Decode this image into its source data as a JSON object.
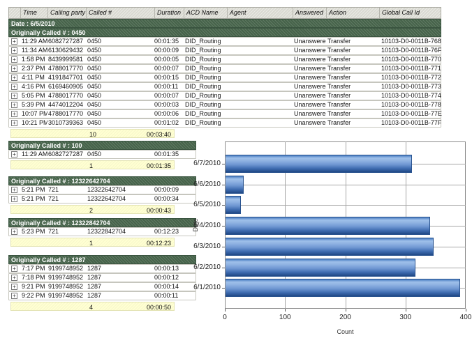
{
  "report": {
    "columns": [
      "Time",
      "Calling party #",
      "Called #",
      "Duration",
      "ACD Name",
      "Agent",
      "Answered",
      "Action",
      "Global Call Id"
    ],
    "date_header": "Date : 6/5/2010",
    "icons": {
      "expand": "+"
    },
    "colors": {
      "group_bar": "#46634a",
      "summary_band": "#ffffd2",
      "bar_blue": "#4a7ec2"
    },
    "top_section": {
      "label": "Originally Called # : 0450",
      "rows": [
        {
          "time": "11:29 AM",
          "calling": "6082727287",
          "called": "0450",
          "duration": "00:01:35",
          "acd": "DID_Routing",
          "agent": "",
          "answered": "Unanswered",
          "action": "Transfer",
          "global_id": "10103-D0-0011B-768"
        },
        {
          "time": "11:34 AM",
          "calling": "6130629432",
          "called": "0450",
          "duration": "00:00:09",
          "acd": "DID_Routing",
          "agent": "",
          "answered": "Unanswered",
          "action": "Transfer",
          "global_id": "10103-D0-0011B-76F"
        },
        {
          "time": "1:58 PM",
          "calling": "8439999581",
          "called": "0450",
          "duration": "00:00:05",
          "acd": "DID_Routing",
          "agent": "",
          "answered": "Unanswered",
          "action": "Transfer",
          "global_id": "10103-D0-0011B-770"
        },
        {
          "time": "2:37 PM",
          "calling": "4788017770",
          "called": "0450",
          "duration": "00:00:07",
          "acd": "DID_Routing",
          "agent": "",
          "answered": "Unanswered",
          "action": "Transfer",
          "global_id": "10103-D0-0011B-771"
        },
        {
          "time": "4:11 PM",
          "calling": "4191847701",
          "called": "0450",
          "duration": "00:00:15",
          "acd": "DID_Routing",
          "agent": "",
          "answered": "Unanswered",
          "action": "Transfer",
          "global_id": "10103-D0-0011B-772"
        },
        {
          "time": "4:16 PM",
          "calling": "6169460905",
          "called": "0450",
          "duration": "00:00:11",
          "acd": "DID_Routing",
          "agent": "",
          "answered": "Unanswered",
          "action": "Transfer",
          "global_id": "10103-D0-0011B-773"
        },
        {
          "time": "5:05 PM",
          "calling": "4788017770",
          "called": "0450",
          "duration": "00:00:07",
          "acd": "DID_Routing",
          "agent": "",
          "answered": "Unanswered",
          "action": "Transfer",
          "global_id": "10103-D0-0011B-774"
        },
        {
          "time": "5:39 PM",
          "calling": "4474012204",
          "called": "0450",
          "duration": "00:00:03",
          "acd": "DID_Routing",
          "agent": "",
          "answered": "Unanswered",
          "action": "Transfer",
          "global_id": "10103-D0-0011B-778"
        },
        {
          "time": "10:07 PM",
          "calling": "4788017770",
          "called": "0450",
          "duration": "00:00:06",
          "acd": "DID_Routing",
          "agent": "",
          "answered": "Unanswered",
          "action": "Transfer",
          "global_id": "10103-D0-0011B-77E"
        },
        {
          "time": "10:21 PM",
          "calling": "3010739363",
          "called": "0450",
          "duration": "00:01:02",
          "acd": "DID_Routing",
          "agent": "",
          "answered": "Unanswered",
          "action": "Transfer",
          "global_id": "10103-D0-0011B-77F"
        }
      ],
      "summary": {
        "count": "10",
        "total_duration": "00:03:40"
      }
    },
    "bottom_sections": [
      {
        "label": "Originally Called # : 100",
        "rows": [
          {
            "time": "11:29 AM",
            "calling": "6082727287",
            "called": "0450",
            "duration": "00:01:35"
          }
        ],
        "summary": {
          "count": "1",
          "total_duration": "00:01:35"
        }
      },
      {
        "label": "Originally Called # : 12322642704",
        "rows": [
          {
            "time": "5:21 PM",
            "calling": "721",
            "called": "12322642704",
            "duration": "00:00:09"
          },
          {
            "time": "5:21 PM",
            "calling": "721",
            "called": "12322642704",
            "duration": "00:00:34"
          }
        ],
        "summary": {
          "count": "2",
          "total_duration": "00:00:43"
        }
      },
      {
        "label": "Originally Called # : 12322842704",
        "rows": [
          {
            "time": "5:23 PM",
            "calling": "721",
            "called": "12322842704",
            "duration": "00:12:23"
          }
        ],
        "summary": {
          "count": "1",
          "total_duration": "00:12:23"
        }
      },
      {
        "label": "Originally Called # : 1287",
        "rows": [
          {
            "time": "7:17 PM",
            "calling": "9199748952",
            "called": "1287",
            "duration": "00:00:13"
          },
          {
            "time": "7:18 PM",
            "calling": "9199748952",
            "called": "1287",
            "duration": "00:00:12"
          },
          {
            "time": "9:21 PM",
            "calling": "9199748952",
            "called": "1287",
            "duration": "00:00:14"
          },
          {
            "time": "9:22 PM",
            "calling": "9199748952",
            "called": "1287",
            "duration": "00:00:11"
          }
        ],
        "summary": {
          "count": "4",
          "total_duration": "00:00:50"
        }
      }
    ]
  },
  "chart_data": {
    "type": "bar",
    "orientation": "horizontal",
    "title": "",
    "categories": [
      "6/7/2010",
      "6/6/2010",
      "6/5/2010",
      "6/4/2010",
      "6/3/2010",
      "6/2/2010",
      "6/1/2010"
    ],
    "values": [
      310,
      30,
      25,
      340,
      345,
      315,
      390
    ],
    "xlabel": "Count",
    "ylabel": "Date",
    "xlim": [
      0,
      400
    ],
    "xticks": [
      0,
      100,
      200,
      300,
      400
    ],
    "grid": true,
    "legend": "none",
    "bar_color": "#4a7ec2"
  }
}
